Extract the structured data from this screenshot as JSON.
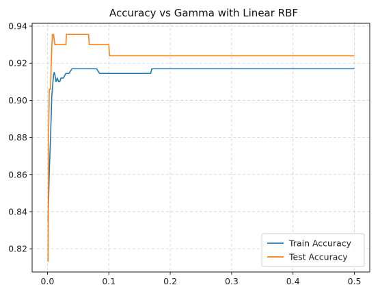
{
  "chart_data": {
    "type": "line",
    "title": "Accuracy vs Gamma with Linear RBF",
    "xlabel": "",
    "ylabel": "",
    "xlim": [
      -0.025,
      0.525
    ],
    "ylim": [
      0.8075,
      0.9415
    ],
    "x_ticks": [
      0.0,
      0.1,
      0.2,
      0.3,
      0.4,
      0.5
    ],
    "x_tick_labels": [
      "0.0",
      "0.1",
      "0.2",
      "0.3",
      "0.4",
      "0.5"
    ],
    "y_ticks": [
      0.82,
      0.84,
      0.86,
      0.88,
      0.9,
      0.92,
      0.94
    ],
    "y_tick_labels": [
      "0.82",
      "0.84",
      "0.86",
      "0.88",
      "0.90",
      "0.92",
      "0.94"
    ],
    "grid": true,
    "legend_position": "bottom-right",
    "series": [
      {
        "name": "Train Accuracy",
        "color": "#1f77b4",
        "x": [
          0.001,
          0.003,
          0.005,
          0.007,
          0.009,
          0.01,
          0.011,
          0.012,
          0.014,
          0.016,
          0.018,
          0.02,
          0.022,
          0.024,
          0.026,
          0.03,
          0.035,
          0.04,
          0.06,
          0.08,
          0.085,
          0.168,
          0.17,
          0.25,
          0.35,
          0.5
        ],
        "y": [
          0.835,
          0.862,
          0.88,
          0.902,
          0.91,
          0.914,
          0.915,
          0.914,
          0.91,
          0.912,
          0.91,
          0.91,
          0.912,
          0.912,
          0.912,
          0.9145,
          0.9145,
          0.917,
          0.917,
          0.917,
          0.9145,
          0.9145,
          0.917,
          0.917,
          0.917,
          0.917
        ]
      },
      {
        "name": "Test Accuracy",
        "color": "#ff7f0e",
        "x": [
          0.001,
          0.002,
          0.003,
          0.005,
          0.006,
          0.007,
          0.008,
          0.01,
          0.012,
          0.03,
          0.031,
          0.067,
          0.068,
          0.1,
          0.101,
          0.25,
          0.35,
          0.5
        ],
        "y": [
          0.813,
          0.885,
          0.906,
          0.906,
          0.918,
          0.928,
          0.9355,
          0.9355,
          0.93,
          0.93,
          0.9355,
          0.9355,
          0.93,
          0.93,
          0.924,
          0.924,
          0.924,
          0.924
        ]
      }
    ]
  }
}
